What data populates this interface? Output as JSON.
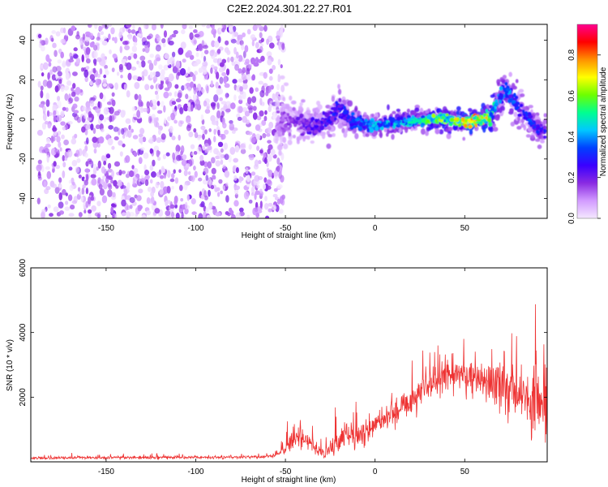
{
  "title": "C2E2.2024.301.22.27.R01",
  "chart_data": [
    {
      "type": "heatmap",
      "xlabel": "Height of straight line (km)",
      "ylabel": "Frequency (Hz)",
      "xlim": [
        -192,
        96
      ],
      "ylim": [
        -50,
        48
      ],
      "xticks": [
        -150,
        -100,
        -50,
        0,
        50
      ],
      "yticks": [
        -40,
        -20,
        0,
        20,
        40
      ],
      "colorbar": {
        "label": "Normalized spectral amplitude",
        "range": [
          0,
          0.95
        ],
        "ticks": [
          0.0,
          0.2,
          0.4,
          0.6,
          0.8
        ],
        "tick_labels": [
          "0.0",
          "0.2",
          "0.4",
          "0.6",
          "0.8"
        ],
        "colors": [
          "#f4e8ff",
          "#d29bff",
          "#8a2be2",
          "#3a00ff",
          "#0040ff",
          "#00c8ff",
          "#00ff90",
          "#6dff00",
          "#ffff00",
          "#ff9000",
          "#ff0000",
          "#ff0090"
        ]
      },
      "noise_region": {
        "x": [
          -192,
          -55
        ],
        "y": [
          -50,
          48
        ],
        "amplitude_range": [
          0.0,
          0.2
        ]
      },
      "signal_trace": {
        "x": [
          -55,
          -45,
          -35,
          -25,
          -20,
          -15,
          -5,
          0,
          10,
          20,
          30,
          40,
          50,
          60,
          65,
          68,
          72,
          75,
          80,
          85,
          90,
          95
        ],
        "center": [
          -2,
          0,
          -4,
          0,
          6,
          0,
          -3,
          -3,
          -2,
          -1,
          0,
          0,
          -1,
          0,
          2,
          8,
          14,
          12,
          6,
          0,
          -4,
          -6
        ],
        "halfwidth": [
          12,
          6,
          5,
          5,
          6,
          4,
          3,
          3,
          3,
          3,
          3,
          3,
          3,
          3,
          4,
          6,
          6,
          6,
          5,
          4,
          4,
          4
        ],
        "amplitude": [
          0.15,
          0.2,
          0.25,
          0.3,
          0.3,
          0.35,
          0.4,
          0.45,
          0.45,
          0.5,
          0.6,
          0.65,
          0.75,
          0.8,
          0.6,
          0.45,
          0.4,
          0.4,
          0.35,
          0.35,
          0.35,
          0.3
        ]
      }
    },
    {
      "type": "line",
      "xlabel": "Height of straight line (km)",
      "ylabel": "SNR (10 * v/v)",
      "xlim": [
        -192,
        96
      ],
      "ylim": [
        0,
        6000
      ],
      "xticks": [
        -150,
        -100,
        -50,
        0,
        50
      ],
      "yticks": [
        2000,
        4000,
        6000
      ],
      "color": "#ee3333",
      "series": [
        {
          "x": [
            -192,
            -150,
            -100,
            -60,
            -55,
            -50,
            -45,
            -40,
            -35,
            -30,
            -25,
            -20,
            -15,
            -10,
            -5,
            0,
            5,
            10,
            15,
            20,
            25,
            30,
            35,
            40,
            45,
            50,
            55,
            60,
            65,
            70,
            75,
            80,
            85,
            90,
            95
          ],
          "y": [
            120,
            130,
            140,
            150,
            200,
            450,
            800,
            700,
            500,
            300,
            350,
            700,
            900,
            900,
            1000,
            1150,
            1300,
            1600,
            1700,
            1900,
            2200,
            2400,
            2550,
            2650,
            2700,
            2650,
            2550,
            2500,
            2450,
            2400,
            2300,
            2200,
            2000,
            1800,
            1900
          ],
          "noise": [
            40,
            40,
            40,
            50,
            80,
            250,
            350,
            300,
            250,
            150,
            250,
            500,
            500,
            450,
            400,
            400,
            400,
            450,
            450,
            500,
            500,
            500,
            500,
            500,
            500,
            500,
            500,
            550,
            600,
            700,
            800,
            900,
            1100,
            1400,
            1200
          ]
        }
      ]
    }
  ]
}
